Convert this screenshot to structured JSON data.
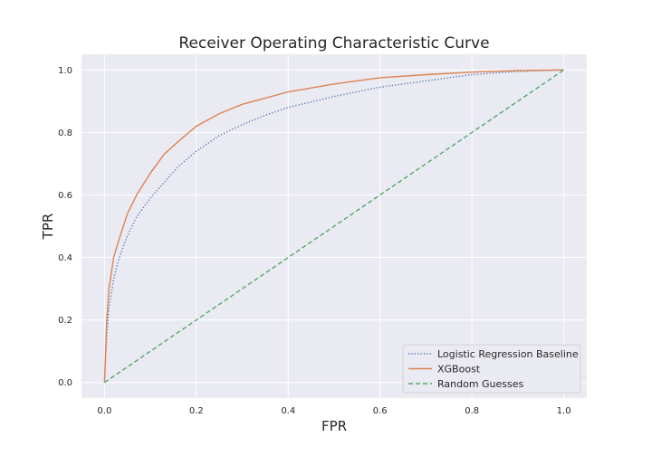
{
  "chart_data": {
    "type": "line",
    "title": "Receiver Operating Characteristic Curve",
    "xlabel": "FPR",
    "ylabel": "TPR",
    "xlim": [
      -0.05,
      1.05
    ],
    "ylim": [
      -0.05,
      1.05
    ],
    "xticks": [
      0.0,
      0.2,
      0.4,
      0.6,
      0.8,
      1.0
    ],
    "yticks": [
      0.0,
      0.2,
      0.4,
      0.6,
      0.8,
      1.0
    ],
    "xtick_labels": [
      "0.0",
      "0.2",
      "0.4",
      "0.6",
      "0.8",
      "1.0"
    ],
    "ytick_labels": [
      "0.0",
      "0.2",
      "0.4",
      "0.6",
      "0.8",
      "1.0"
    ],
    "grid": true,
    "background_color": "#eaeaf2",
    "legend_position": "lower-right",
    "series": [
      {
        "name": "Logistic Regression Baseline",
        "color": "#4c72b0",
        "style": "dotted",
        "x": [
          0.0,
          0.005,
          0.01,
          0.02,
          0.03,
          0.05,
          0.07,
          0.1,
          0.13,
          0.16,
          0.2,
          0.25,
          0.3,
          0.35,
          0.4,
          0.5,
          0.6,
          0.7,
          0.8,
          0.9,
          1.0
        ],
        "y": [
          0.0,
          0.15,
          0.24,
          0.33,
          0.39,
          0.47,
          0.53,
          0.59,
          0.64,
          0.69,
          0.74,
          0.79,
          0.825,
          0.855,
          0.88,
          0.915,
          0.945,
          0.965,
          0.985,
          0.995,
          1.0
        ]
      },
      {
        "name": "XGBoost",
        "color": "#dd8452",
        "style": "solid",
        "x": [
          0.0,
          0.005,
          0.01,
          0.02,
          0.03,
          0.05,
          0.07,
          0.1,
          0.13,
          0.16,
          0.2,
          0.25,
          0.3,
          0.35,
          0.4,
          0.5,
          0.6,
          0.7,
          0.8,
          0.9,
          1.0
        ],
        "y": [
          0.0,
          0.2,
          0.3,
          0.4,
          0.45,
          0.54,
          0.6,
          0.67,
          0.73,
          0.77,
          0.82,
          0.86,
          0.89,
          0.91,
          0.93,
          0.955,
          0.975,
          0.985,
          0.993,
          0.998,
          1.0
        ]
      },
      {
        "name": "Random Guesses",
        "color": "#55a868",
        "style": "dashed",
        "x": [
          0.0,
          1.0
        ],
        "y": [
          0.0,
          1.0
        ]
      }
    ]
  }
}
